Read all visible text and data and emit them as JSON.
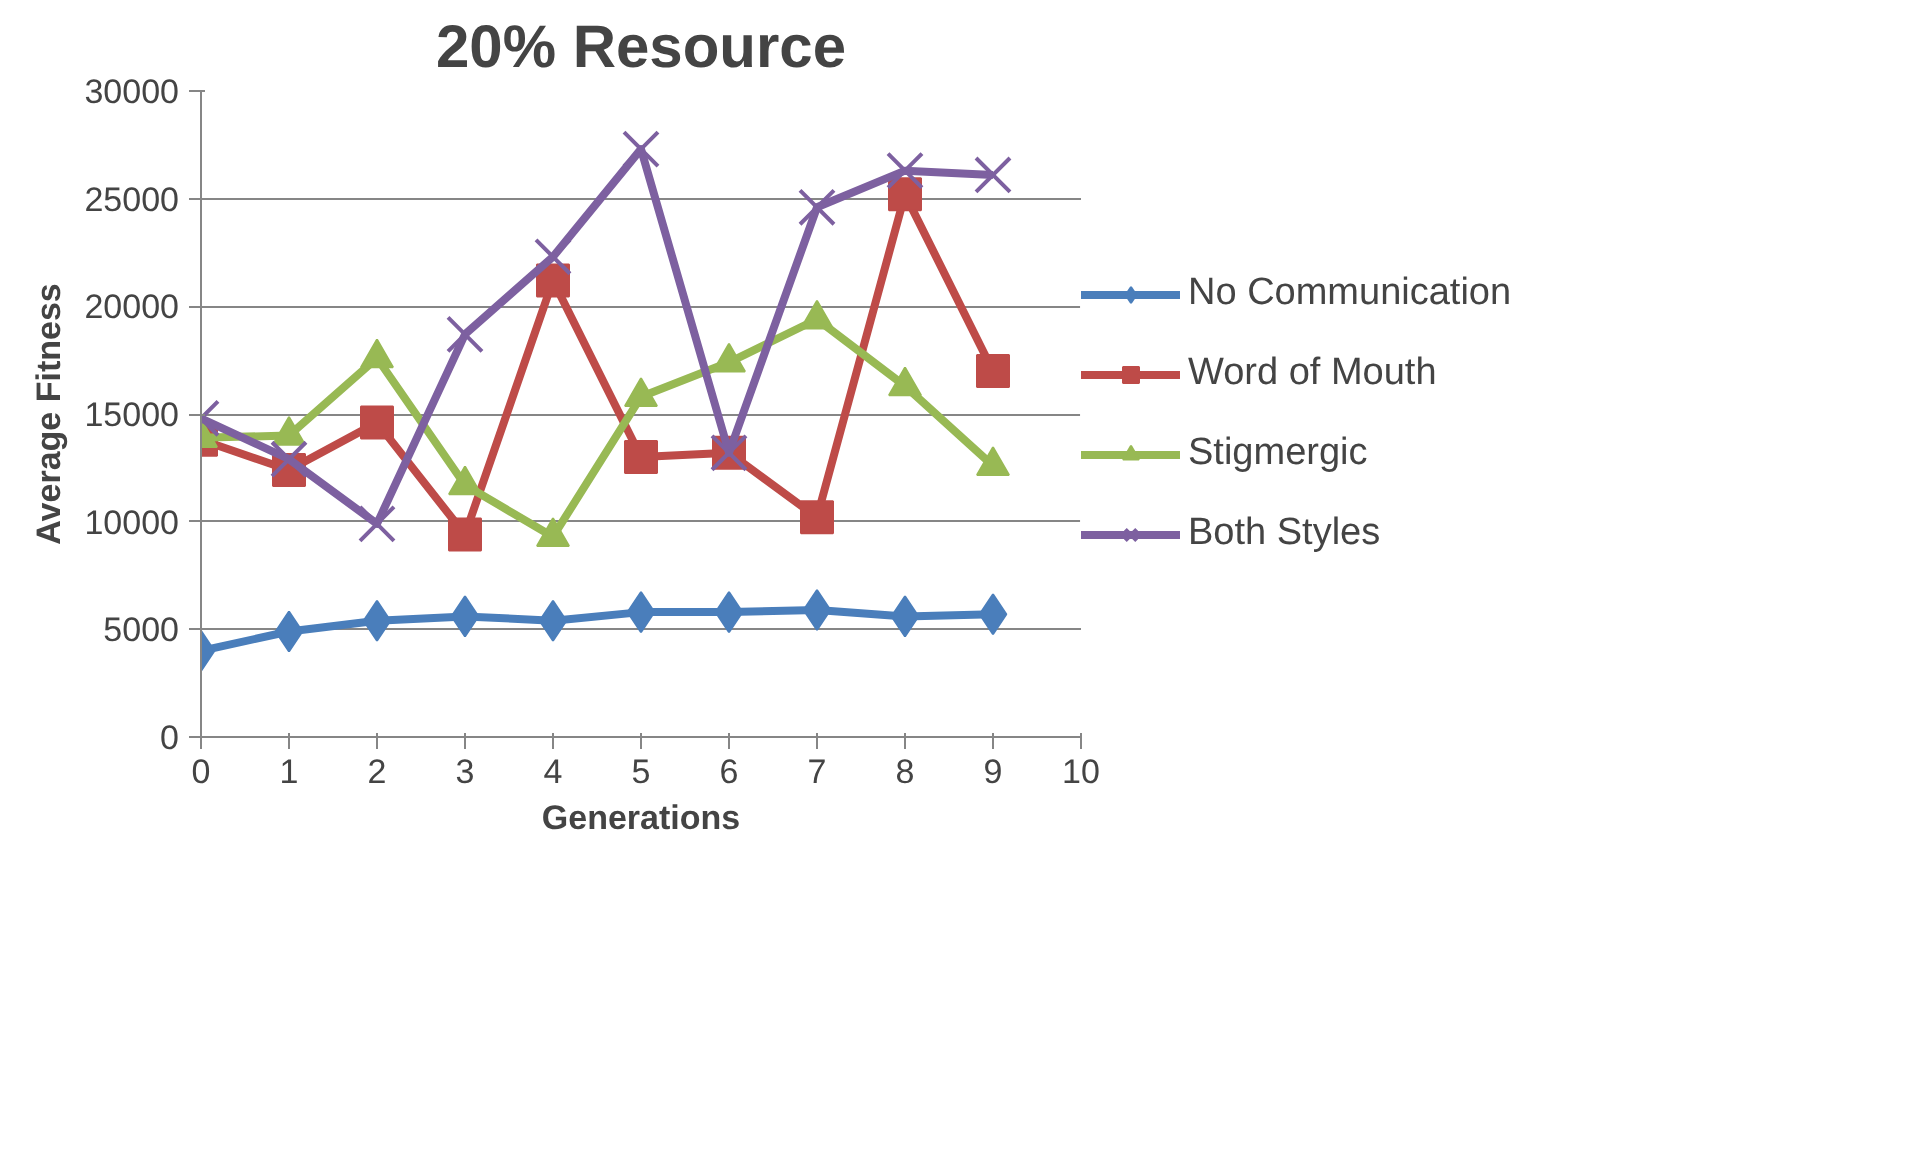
{
  "chart_data": {
    "type": "line",
    "title": "20% Resource",
    "xlabel": "Generations",
    "ylabel": "Average Fitness",
    "x": [
      0,
      1,
      2,
      3,
      4,
      5,
      6,
      7,
      8,
      9
    ],
    "series": [
      {
        "name": "No Communication",
        "color": "#4a7ebb",
        "marker": "diamond",
        "values": [
          4000,
          4900,
          5400,
          5600,
          5400,
          5800,
          5800,
          5900,
          5600,
          5700
        ]
      },
      {
        "name": "Word of Mouth",
        "color": "#be4b48",
        "marker": "square",
        "values": [
          13800,
          12400,
          14600,
          9400,
          21200,
          13000,
          13200,
          10200,
          25200,
          17000
        ]
      },
      {
        "name": "Stigmergic",
        "color": "#98b954",
        "marker": "triangle",
        "values": [
          13900,
          14000,
          17600,
          11700,
          9300,
          15800,
          17400,
          19400,
          16300,
          12600
        ]
      },
      {
        "name": "Both Styles",
        "color": "#7d60a0",
        "marker": "cross",
        "values": [
          14800,
          12900,
          9900,
          18700,
          22300,
          27300,
          13200,
          24600,
          26300,
          26100
        ]
      }
    ],
    "xlim": [
      0,
      10
    ],
    "xticks": [
      0,
      1,
      2,
      3,
      4,
      5,
      6,
      7,
      8,
      9,
      10
    ],
    "ylim": [
      0,
      30000
    ],
    "yticks": [
      0,
      5000,
      10000,
      15000,
      20000,
      25000,
      30000
    ],
    "grid": "y",
    "legend": "right",
    "line_style": "solid"
  }
}
